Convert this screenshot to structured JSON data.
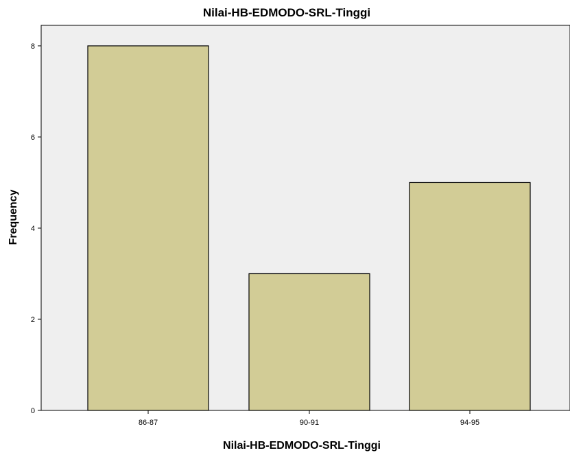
{
  "chart_data": {
    "type": "bar",
    "title": "Nilai-HB-EDMODO-SRL-Tinggi",
    "xlabel": "Nilai-HB-EDMODO-SRL-Tinggi",
    "ylabel": "Frequency",
    "categories": [
      "86-87",
      "90-91",
      "94-95"
    ],
    "values": [
      8,
      3,
      5
    ],
    "ylim": [
      0,
      8.45
    ],
    "yticks": [
      "0",
      "2",
      "4",
      "6",
      "8"
    ],
    "grid": false,
    "legend": "none",
    "colors": {
      "plot_background": "#efefef",
      "bar_fill": "#d2cc96",
      "bar_stroke": "#000000"
    }
  }
}
